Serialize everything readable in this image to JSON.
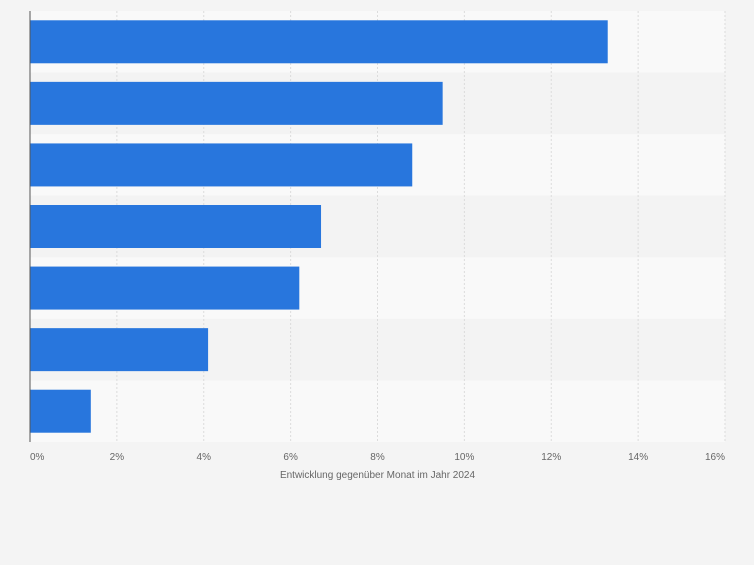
{
  "chart_data": {
    "type": "bar",
    "orientation": "horizontal",
    "categories": [
      "",
      "",
      "",
      "",
      "",
      "",
      ""
    ],
    "values": [
      13.3,
      9.5,
      8.8,
      6.7,
      6.2,
      4.1,
      1.4
    ],
    "xlabel": "Entwicklung gegenüber Monat im Jahr 2024",
    "ylabel": "",
    "xlim": [
      0,
      16
    ],
    "ticks": [
      0,
      2,
      4,
      6,
      8,
      10,
      12,
      14,
      16
    ],
    "tick_labels": [
      "0%",
      "2%",
      "4%",
      "6%",
      "8%",
      "10%",
      "12%",
      "14%",
      "16%"
    ],
    "grid": true,
    "legend": "none",
    "colors": {
      "bar": "#2876dd",
      "row_band_light": "#f9f9f9",
      "row_band_dark": "#f3f3f3",
      "background": "#f4f4f4",
      "grid": "#dcdcdc",
      "axis": "#555555",
      "text": "#666666"
    }
  }
}
